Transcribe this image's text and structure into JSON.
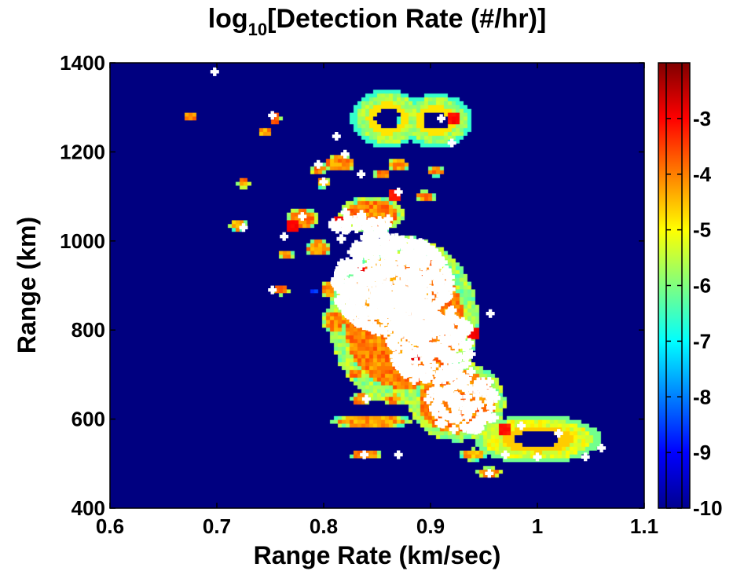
{
  "chart_data": {
    "type": "heatmap",
    "title": {
      "prefix": "log",
      "subscript": "10",
      "rest": "[Detection Rate (#/hr)]"
    },
    "xlabel": "Range Rate (km/sec)",
    "ylabel": "Range (km)",
    "xlim": [
      0.6,
      1.1
    ],
    "ylim": [
      400,
      1400
    ],
    "xticks": [
      "0.6",
      "0.7",
      "0.8",
      "0.9",
      "1",
      "1.1"
    ],
    "yticks": [
      "400",
      "600",
      "800",
      "1000",
      "1200",
      "1400"
    ],
    "background_value": -10,
    "colorbar": {
      "range": [
        -10,
        -2
      ],
      "ticks": [
        "-3",
        "-4",
        "-5",
        "-6",
        "-7",
        "-8",
        "-9",
        "-10"
      ],
      "colormap": "jet"
    },
    "blobs": [
      {
        "x": 0.86,
        "y": 1275,
        "rx": 0.035,
        "ry": 65,
        "value": -5.7,
        "ring": true,
        "inner_value": -4.8
      },
      {
        "x": 0.905,
        "y": 1270,
        "rx": 0.035,
        "ry": 60,
        "value": -5.7,
        "ring": true,
        "inner_value": -4.8
      },
      {
        "x": 1.0,
        "y": 555,
        "rx": 0.06,
        "ry": 55,
        "value": -5.2,
        "ring": true,
        "inner_value": -4.6
      },
      {
        "x": 0.875,
        "y": 820,
        "rx": 0.07,
        "ry": 190,
        "value": -4.0
      },
      {
        "x": 0.925,
        "y": 640,
        "rx": 0.045,
        "ry": 90,
        "value": -4.0
      },
      {
        "x": 0.845,
        "y": 1060,
        "rx": 0.03,
        "ry": 40,
        "value": -4.0
      },
      {
        "x": 0.675,
        "y": 1280,
        "rx": 0.006,
        "ry": 12,
        "value": -3.9
      },
      {
        "x": 0.725,
        "y": 1130,
        "rx": 0.006,
        "ry": 12,
        "value": -4.1
      },
      {
        "x": 0.755,
        "y": 1275,
        "rx": 0.006,
        "ry": 14,
        "value": -3.8
      },
      {
        "x": 0.745,
        "y": 1245,
        "rx": 0.006,
        "ry": 12,
        "value": -4.2
      },
      {
        "x": 0.815,
        "y": 1175,
        "rx": 0.015,
        "ry": 20,
        "value": -4.1
      },
      {
        "x": 0.87,
        "y": 1170,
        "rx": 0.01,
        "ry": 15,
        "value": -4.2
      },
      {
        "x": 0.855,
        "y": 1150,
        "rx": 0.008,
        "ry": 12,
        "value": -4.0
      },
      {
        "x": 0.905,
        "y": 1155,
        "rx": 0.008,
        "ry": 12,
        "value": -4.1
      },
      {
        "x": 0.795,
        "y": 1160,
        "rx": 0.007,
        "ry": 14,
        "value": -4.0
      },
      {
        "x": 0.8,
        "y": 1130,
        "rx": 0.007,
        "ry": 12,
        "value": -4.2
      },
      {
        "x": 0.895,
        "y": 1100,
        "rx": 0.01,
        "ry": 12,
        "value": -4.0
      },
      {
        "x": 0.72,
        "y": 1035,
        "rx": 0.008,
        "ry": 14,
        "value": -4.3
      },
      {
        "x": 0.78,
        "y": 1050,
        "rx": 0.015,
        "ry": 25,
        "value": -4.0
      },
      {
        "x": 0.765,
        "y": 970,
        "rx": 0.007,
        "ry": 12,
        "value": -4.1
      },
      {
        "x": 0.795,
        "y": 985,
        "rx": 0.012,
        "ry": 20,
        "value": -4.1
      },
      {
        "x": 0.76,
        "y": 890,
        "rx": 0.008,
        "ry": 12,
        "value": -4.0
      },
      {
        "x": 0.79,
        "y": 885,
        "rx": 0.004,
        "ry": 8,
        "value": -8.6
      },
      {
        "x": 0.805,
        "y": 890,
        "rx": 0.008,
        "ry": 20,
        "value": -4.2
      },
      {
        "x": 0.81,
        "y": 820,
        "rx": 0.012,
        "ry": 30,
        "value": -4.1
      },
      {
        "x": 0.83,
        "y": 700,
        "rx": 0.008,
        "ry": 12,
        "value": -4.0
      },
      {
        "x": 0.875,
        "y": 700,
        "rx": 0.008,
        "ry": 12,
        "value": -4.0
      },
      {
        "x": 0.835,
        "y": 645,
        "rx": 0.01,
        "ry": 14,
        "value": -4.1
      },
      {
        "x": 0.865,
        "y": 645,
        "rx": 0.008,
        "ry": 12,
        "value": -4.0
      },
      {
        "x": 0.845,
        "y": 595,
        "rx": 0.04,
        "ry": 15,
        "value": -4.2
      },
      {
        "x": 0.84,
        "y": 520,
        "rx": 0.015,
        "ry": 12,
        "value": -4.1
      },
      {
        "x": 0.955,
        "y": 480,
        "rx": 0.012,
        "ry": 12,
        "value": -4.0
      },
      {
        "x": 0.94,
        "y": 520,
        "rx": 0.012,
        "ry": 14,
        "value": -4.3
      }
    ],
    "hot_spots": [
      {
        "x": 0.92,
        "y": 1275,
        "value": -3.2
      },
      {
        "x": 0.815,
        "y": 1040,
        "value": -3.1
      },
      {
        "x": 0.835,
        "y": 930,
        "value": -3.0
      },
      {
        "x": 0.86,
        "y": 1000,
        "value": -3.0
      },
      {
        "x": 0.77,
        "y": 1035,
        "value": -3.2
      },
      {
        "x": 0.865,
        "y": 1100,
        "value": -3.3
      },
      {
        "x": 0.885,
        "y": 740,
        "value": -3.0
      },
      {
        "x": 0.94,
        "y": 790,
        "value": -3.1
      },
      {
        "x": 0.97,
        "y": 575,
        "value": -3.3
      }
    ],
    "markers": [
      [
        0.698,
        1380
      ],
      [
        0.752,
        1282
      ],
      [
        0.91,
        1275
      ],
      [
        0.812,
        1235
      ],
      [
        0.92,
        1220
      ],
      [
        0.795,
        1172
      ],
      [
        0.835,
        1150
      ],
      [
        0.8,
        1133
      ],
      [
        0.87,
        1110
      ],
      [
        0.82,
        1195
      ],
      [
        0.725,
        1030
      ],
      [
        0.78,
        1055
      ],
      [
        0.763,
        1010
      ],
      [
        0.752,
        890
      ],
      [
        0.956,
        837
      ],
      [
        0.84,
        645
      ],
      [
        0.87,
        520
      ],
      [
        0.838,
        520
      ],
      [
        0.955,
        478
      ],
      [
        0.985,
        585
      ],
      [
        1.06,
        535
      ],
      [
        1.045,
        515
      ],
      [
        1.0,
        515
      ],
      [
        0.97,
        520
      ],
      [
        1.02,
        568
      ]
    ],
    "dense_regions": [
      {
        "x": 0.865,
        "y": 900,
        "rx": 0.055,
        "ry": 110,
        "count": 520
      },
      {
        "x": 0.9,
        "y": 770,
        "rx": 0.04,
        "ry": 90,
        "count": 240
      },
      {
        "x": 0.93,
        "y": 640,
        "rx": 0.035,
        "ry": 70,
        "count": 110
      },
      {
        "x": 0.835,
        "y": 1030,
        "rx": 0.03,
        "ry": 40,
        "count": 50
      }
    ]
  }
}
